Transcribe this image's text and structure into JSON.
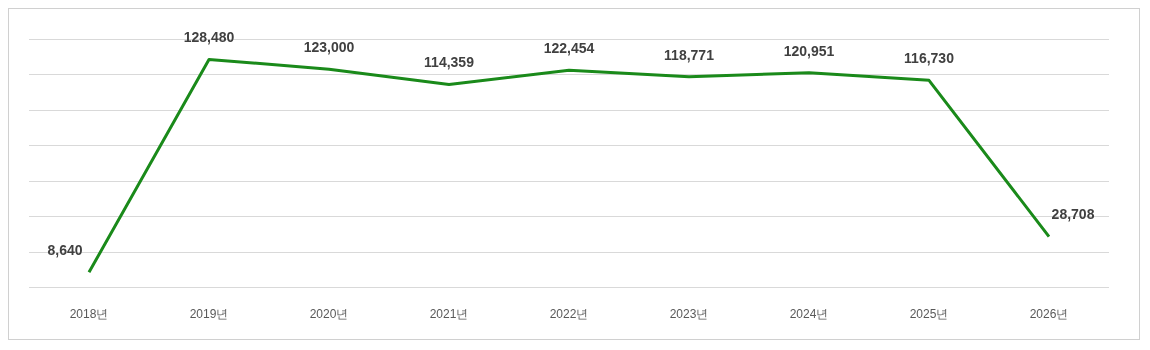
{
  "chart_data": {
    "type": "line",
    "categories": [
      "2018년",
      "2019년",
      "2020년",
      "2021년",
      "2022년",
      "2023년",
      "2024년",
      "2025년",
      "2026년"
    ],
    "series": [
      {
        "color": "#1a8a1a",
        "values": [
          8640,
          128480,
          123000,
          114359,
          122454,
          118771,
          120951,
          116730,
          28708
        ],
        "value_labels": [
          "8,640",
          "128,480",
          "123,000",
          "114,359",
          "122,454",
          "118,771",
          "120,951",
          "116,730",
          "28,708"
        ]
      }
    ],
    "tick_labels": "x",
    "grid": "y",
    "legend": false,
    "marker": "none",
    "line_style": "solid"
  }
}
